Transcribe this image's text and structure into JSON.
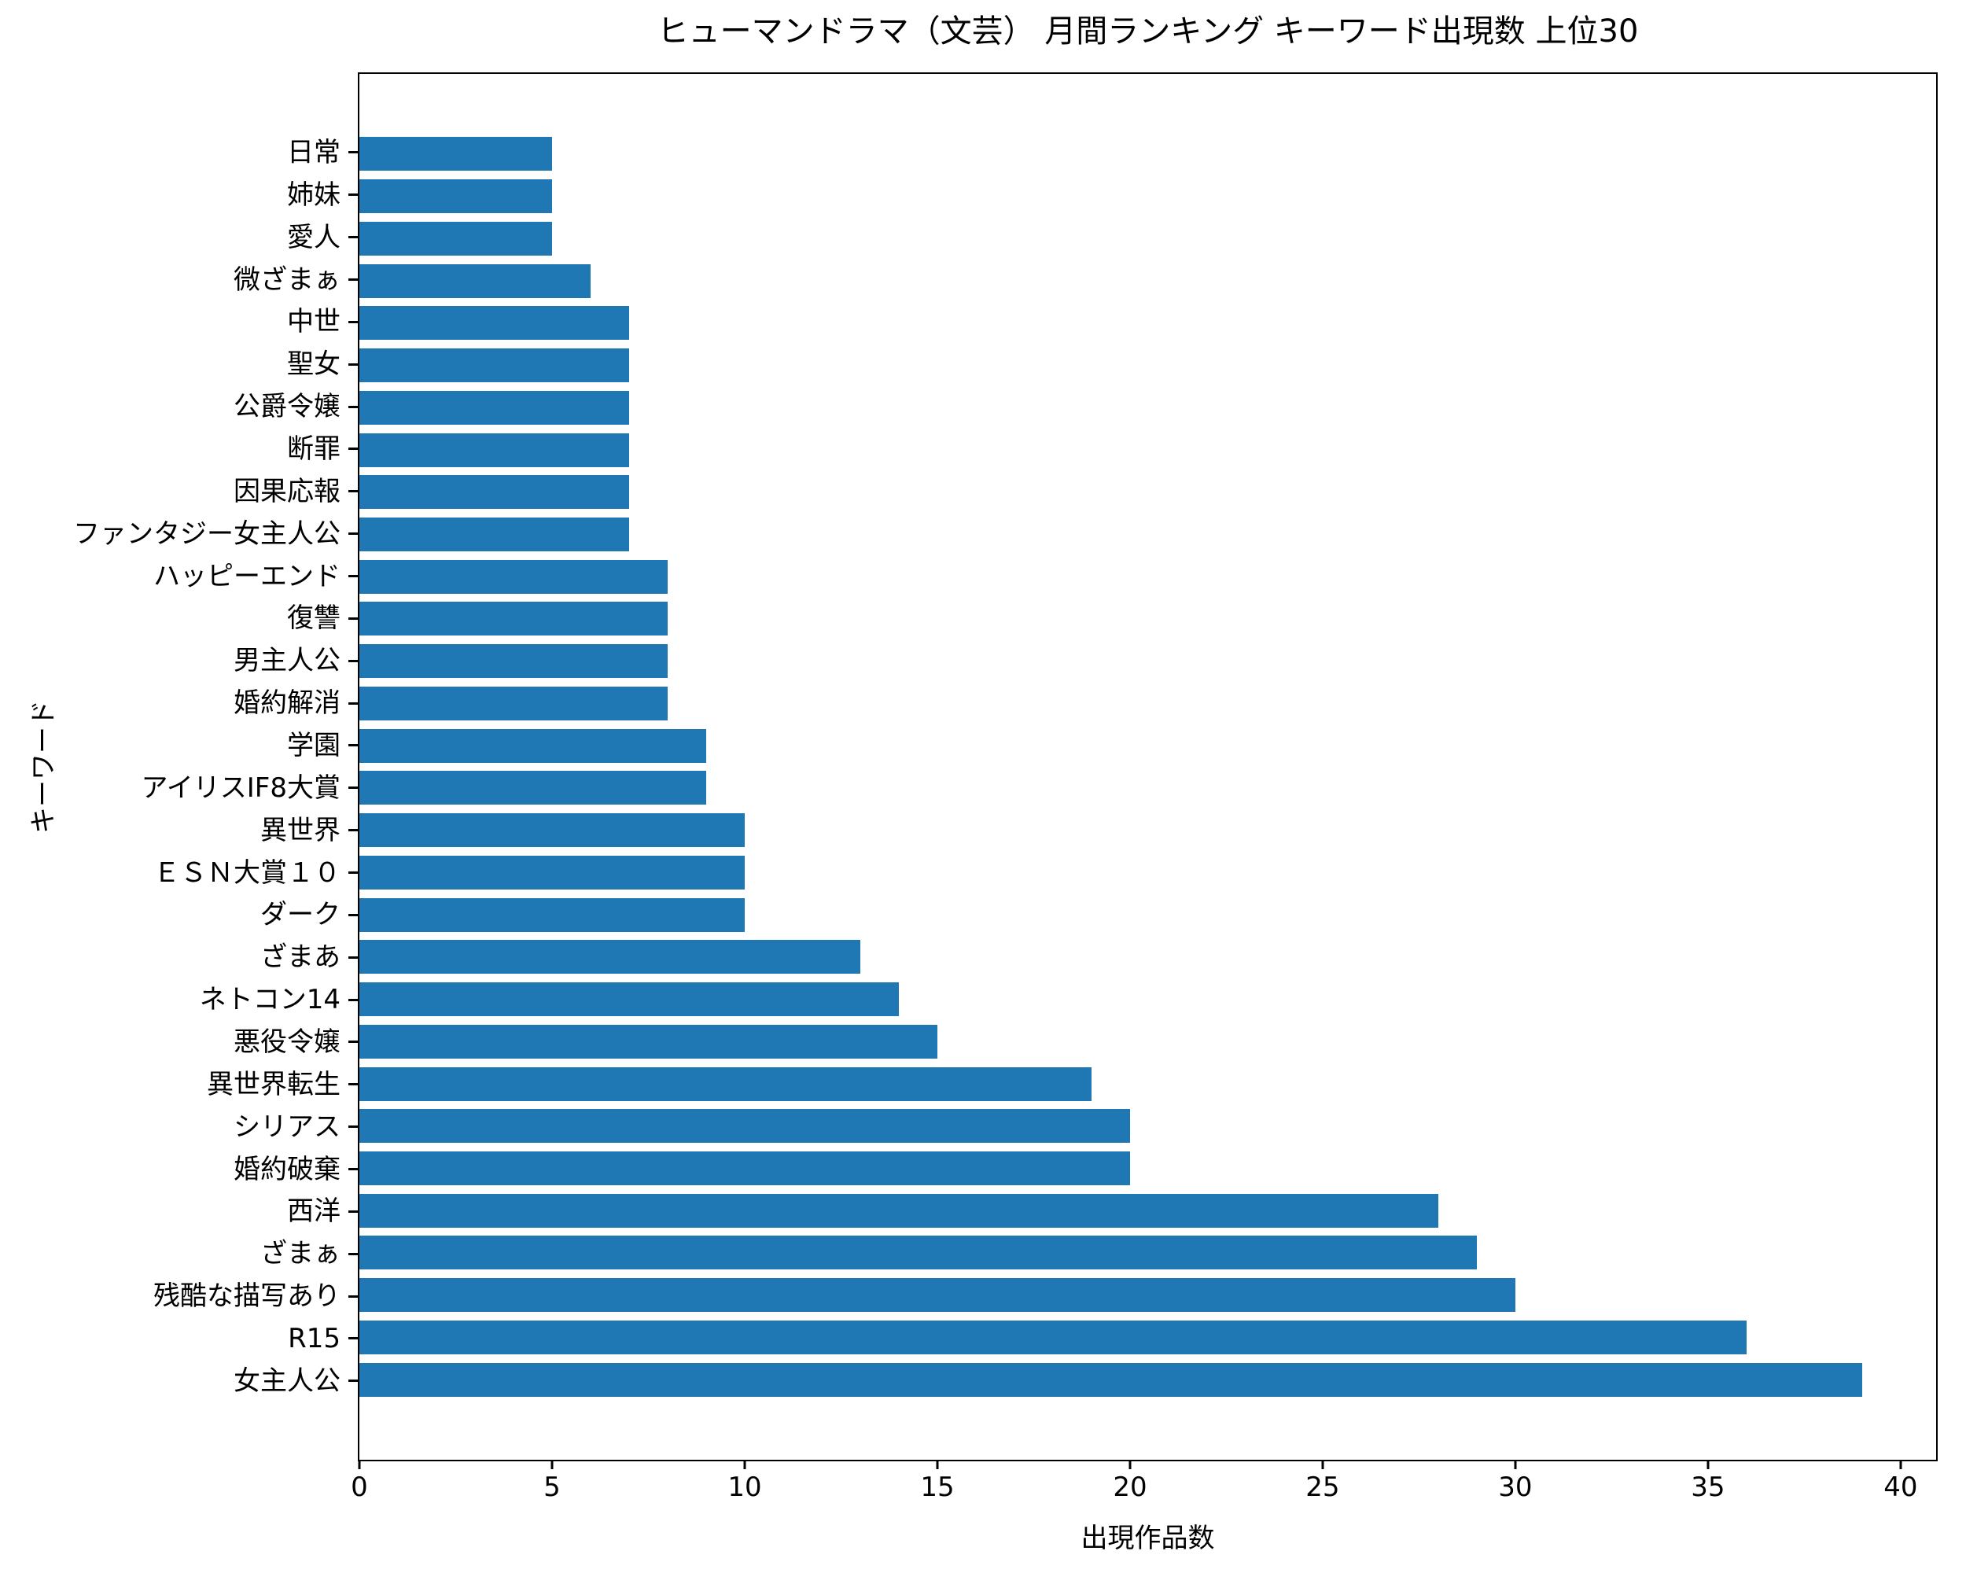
{
  "title": "ヒューマンドラマ（文芸） 月間ランキング キーワード出現数 上位30",
  "bar_color": "#1f77b4",
  "axis_color": "#000000",
  "chart_data": {
    "type": "bar",
    "orientation": "horizontal",
    "title": "ヒューマンドラマ（文芸） 月間ランキング キーワード出現数 上位30",
    "xlabel": "出現作品数",
    "ylabel": "キーワード",
    "xlim": [
      0,
      40.92
    ],
    "xticks": [
      0,
      5,
      10,
      15,
      20,
      25,
      30,
      35,
      40
    ],
    "grid": false,
    "legend": null,
    "category_order": "top-to-bottom",
    "categories": [
      "日常",
      "姉妹",
      "愛人",
      "微ざまぁ",
      "中世",
      "聖女",
      "公爵令嬢",
      "断罪",
      "因果応報",
      "ファンタジー女主人公",
      "ハッピーエンド",
      "復讐",
      "男主人公",
      "婚約解消",
      "学園",
      "アイリスIF8大賞",
      "異世界",
      "ＥＳＮ大賞１０",
      "ダーク",
      "ざまあ",
      "ネトコン14",
      "悪役令嬢",
      "異世界転生",
      "シリアス",
      "婚約破棄",
      "西洋",
      "ざまぁ",
      "残酷な描写あり",
      "R15",
      "女主人公"
    ],
    "values": [
      5,
      5,
      5,
      6,
      7,
      7,
      7,
      7,
      7,
      7,
      8,
      8,
      8,
      8,
      9,
      9,
      10,
      10,
      10,
      13,
      14,
      15,
      19,
      20,
      20,
      28,
      29,
      30,
      36,
      39
    ]
  }
}
